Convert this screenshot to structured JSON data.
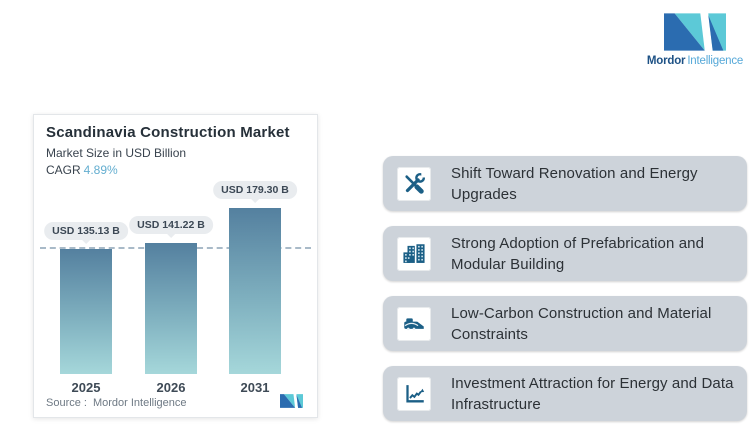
{
  "brand": {
    "name_primary": "Mordor",
    "name_secondary": "Intelligence",
    "colors": {
      "logo_blue": "#2b6cb0",
      "logo_teal": "#5cc9d7"
    }
  },
  "chart_card": {
    "title": "Scandinavia Construction Market",
    "subtitle": "Market Size in USD Billion",
    "cagr_label": "CAGR",
    "cagr_value": "4.89%",
    "source_label": "Source :",
    "source_value": "Mordor Intelligence"
  },
  "chart_data": {
    "type": "bar",
    "title": "Scandinavia Construction Market",
    "subtitle": "Market Size in USD Billion",
    "unit": "USD Billion",
    "cagr_percent": 4.89,
    "categories": [
      "2025",
      "2026",
      "2031"
    ],
    "values": [
      135.13,
      141.22,
      179.3
    ],
    "labels": [
      "USD 135.13 B",
      "USD 141.22 B",
      "USD 179.30 B"
    ],
    "reference_line_at": 135.13,
    "ylim": [
      0,
      185
    ],
    "grid": "off",
    "legend": "none",
    "bar_gradient_top": "#54809f",
    "bar_gradient_bottom": "#a5d7da",
    "reference_line_color": "#a9bac8",
    "cagr_accent_color": "#64aed0",
    "source": "Source : Mordor Intelligence"
  },
  "trends": {
    "accent_color": "#1b5f86",
    "tile_background": "#cdd3da",
    "items": [
      {
        "icon": "tools-icon",
        "label": "Shift Toward Renovation and Energy Upgrades"
      },
      {
        "icon": "buildings-icon",
        "label": "Strong Adoption of Prefabrication and Modular Building"
      },
      {
        "icon": "truck-icon",
        "label": "Low-Carbon Construction and Material Constraints"
      },
      {
        "icon": "chart-icon",
        "label": "Investment Attraction for Energy and Data Infrastructure"
      }
    ]
  }
}
